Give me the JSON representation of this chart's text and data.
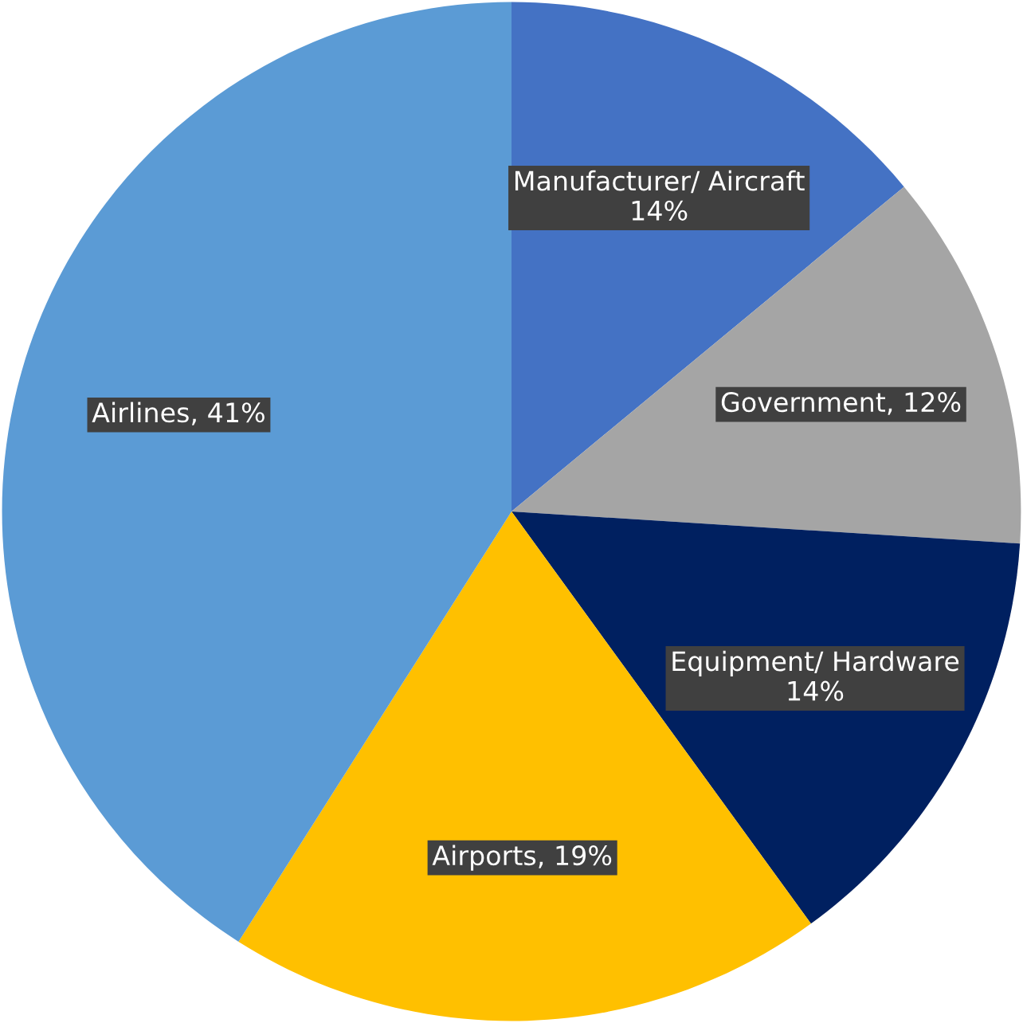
{
  "chart_data": {
    "type": "pie",
    "categories": [
      "Manufacturer/ Aircraft",
      "Government",
      "Equipment/ Hardware",
      "Airports",
      "Airlines"
    ],
    "values": [
      14,
      12,
      14,
      19,
      41
    ],
    "colors": [
      "#4472c4",
      "#a5a5a5",
      "#002060",
      "#ffc000",
      "#5b9bd5"
    ],
    "value_labels": [
      "14%",
      "12%",
      "14%",
      "19%",
      "41%"
    ]
  }
}
